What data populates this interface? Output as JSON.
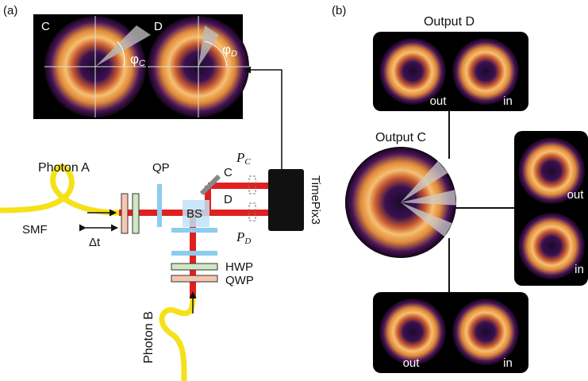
{
  "panel_a": {
    "label": "(a)",
    "camera_views": [
      "C",
      "D"
    ],
    "angles": [
      {
        "symbol": "φ",
        "subscript": "C"
      },
      {
        "symbol": "φ",
        "subscript": "D"
      }
    ],
    "photon_a": "Photon A",
    "fiber": "SMF",
    "delay": "Δt",
    "plate": "QP",
    "ports": [
      "C",
      "D"
    ],
    "beam_splitter": "BS",
    "polarizers": [
      {
        "symbol": "P",
        "subscript": "C"
      },
      {
        "symbol": "P",
        "subscript": "D"
      }
    ],
    "camera": "TimePix3",
    "waveplates": [
      "HWP",
      "QWP"
    ],
    "photon_b": "Photon B"
  },
  "panel_b": {
    "label": "(b)",
    "output_d": "Output D",
    "output_c": "Output C",
    "insets": [
      {
        "out": "out",
        "in": "in"
      },
      {
        "out": "out",
        "in": "in"
      },
      {
        "out": "out",
        "in": "in"
      }
    ]
  }
}
